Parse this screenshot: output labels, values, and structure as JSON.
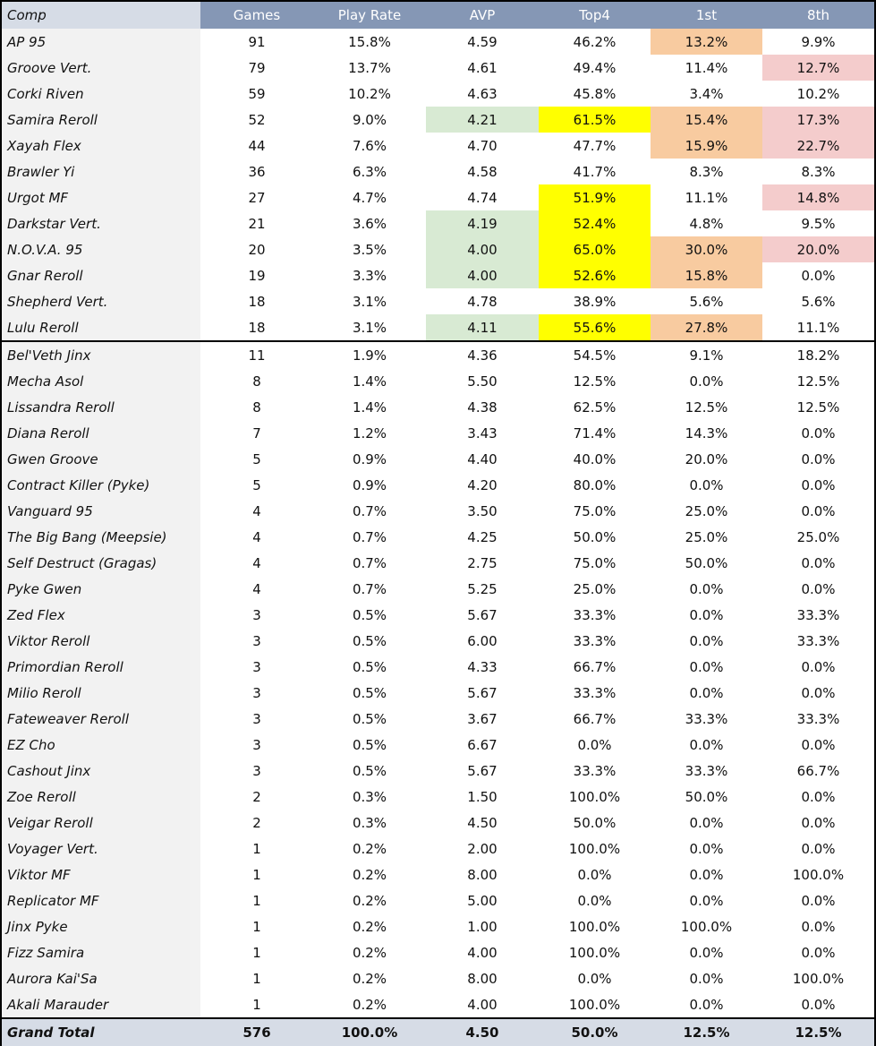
{
  "columns": [
    "Comp",
    "Games",
    "Play Rate",
    "AVP",
    "Top4",
    "1st",
    "8th"
  ],
  "colors": {
    "header": "#8597b5",
    "name_header": "#d6dce6",
    "green": "#d8ead3",
    "yellow": "#ffff00",
    "orange": "#f8cba0",
    "pink": "#f4cccc"
  },
  "rows": [
    {
      "comp": "AP 95",
      "games": "91",
      "play_rate": "15.8%",
      "avp": "4.59",
      "top4": "46.2%",
      "first": "13.2%",
      "eighth": "9.9%",
      "hl": {
        "first": "orange"
      }
    },
    {
      "comp": "Groove Vert.",
      "games": "79",
      "play_rate": "13.7%",
      "avp": "4.61",
      "top4": "49.4%",
      "first": "11.4%",
      "eighth": "12.7%",
      "hl": {
        "eighth": "pink"
      }
    },
    {
      "comp": "Corki Riven",
      "games": "59",
      "play_rate": "10.2%",
      "avp": "4.63",
      "top4": "45.8%",
      "first": "3.4%",
      "eighth": "10.2%",
      "hl": {}
    },
    {
      "comp": "Samira Reroll",
      "games": "52",
      "play_rate": "9.0%",
      "avp": "4.21",
      "top4": "61.5%",
      "first": "15.4%",
      "eighth": "17.3%",
      "hl": {
        "avp": "green",
        "top4": "yellow",
        "first": "orange",
        "eighth": "pink"
      }
    },
    {
      "comp": "Xayah Flex",
      "games": "44",
      "play_rate": "7.6%",
      "avp": "4.70",
      "top4": "47.7%",
      "first": "15.9%",
      "eighth": "22.7%",
      "hl": {
        "first": "orange",
        "eighth": "pink"
      }
    },
    {
      "comp": "Brawler Yi",
      "games": "36",
      "play_rate": "6.3%",
      "avp": "4.58",
      "top4": "41.7%",
      "first": "8.3%",
      "eighth": "8.3%",
      "hl": {}
    },
    {
      "comp": "Urgot MF",
      "games": "27",
      "play_rate": "4.7%",
      "avp": "4.74",
      "top4": "51.9%",
      "first": "11.1%",
      "eighth": "14.8%",
      "hl": {
        "top4": "yellow",
        "eighth": "pink"
      }
    },
    {
      "comp": "Darkstar Vert.",
      "games": "21",
      "play_rate": "3.6%",
      "avp": "4.19",
      "top4": "52.4%",
      "first": "4.8%",
      "eighth": "9.5%",
      "hl": {
        "avp": "green",
        "top4": "yellow"
      }
    },
    {
      "comp": "N.O.V.A. 95",
      "games": "20",
      "play_rate": "3.5%",
      "avp": "4.00",
      "top4": "65.0%",
      "first": "30.0%",
      "eighth": "20.0%",
      "hl": {
        "avp": "green",
        "top4": "yellow",
        "first": "orange",
        "eighth": "pink"
      }
    },
    {
      "comp": "Gnar Reroll",
      "games": "19",
      "play_rate": "3.3%",
      "avp": "4.00",
      "top4": "52.6%",
      "first": "15.8%",
      "eighth": "0.0%",
      "hl": {
        "avp": "green",
        "top4": "yellow",
        "first": "orange"
      }
    },
    {
      "comp": "Shepherd Vert.",
      "games": "18",
      "play_rate": "3.1%",
      "avp": "4.78",
      "top4": "38.9%",
      "first": "5.6%",
      "eighth": "5.6%",
      "hl": {}
    },
    {
      "comp": "Lulu Reroll",
      "games": "18",
      "play_rate": "3.1%",
      "avp": "4.11",
      "top4": "55.6%",
      "first": "27.8%",
      "eighth": "11.1%",
      "hl": {
        "avp": "green",
        "top4": "yellow",
        "first": "orange"
      }
    },
    {
      "comp": "Bel'Veth Jinx",
      "games": "11",
      "play_rate": "1.9%",
      "avp": "4.36",
      "top4": "54.5%",
      "first": "9.1%",
      "eighth": "18.2%",
      "hl": {}
    },
    {
      "comp": "Mecha Asol",
      "games": "8",
      "play_rate": "1.4%",
      "avp": "5.50",
      "top4": "12.5%",
      "first": "0.0%",
      "eighth": "12.5%",
      "hl": {}
    },
    {
      "comp": "Lissandra Reroll",
      "games": "8",
      "play_rate": "1.4%",
      "avp": "4.38",
      "top4": "62.5%",
      "first": "12.5%",
      "eighth": "12.5%",
      "hl": {}
    },
    {
      "comp": "Diana Reroll",
      "games": "7",
      "play_rate": "1.2%",
      "avp": "3.43",
      "top4": "71.4%",
      "first": "14.3%",
      "eighth": "0.0%",
      "hl": {}
    },
    {
      "comp": "Gwen Groove",
      "games": "5",
      "play_rate": "0.9%",
      "avp": "4.40",
      "top4": "40.0%",
      "first": "20.0%",
      "eighth": "0.0%",
      "hl": {}
    },
    {
      "comp": "Contract Killer (Pyke)",
      "games": "5",
      "play_rate": "0.9%",
      "avp": "4.20",
      "top4": "80.0%",
      "first": "0.0%",
      "eighth": "0.0%",
      "hl": {}
    },
    {
      "comp": "Vanguard 95",
      "games": "4",
      "play_rate": "0.7%",
      "avp": "3.50",
      "top4": "75.0%",
      "first": "25.0%",
      "eighth": "0.0%",
      "hl": {}
    },
    {
      "comp": "The Big Bang (Meepsie)",
      "games": "4",
      "play_rate": "0.7%",
      "avp": "4.25",
      "top4": "50.0%",
      "first": "25.0%",
      "eighth": "25.0%",
      "hl": {}
    },
    {
      "comp": "Self Destruct (Gragas)",
      "games": "4",
      "play_rate": "0.7%",
      "avp": "2.75",
      "top4": "75.0%",
      "first": "50.0%",
      "eighth": "0.0%",
      "hl": {}
    },
    {
      "comp": "Pyke Gwen",
      "games": "4",
      "play_rate": "0.7%",
      "avp": "5.25",
      "top4": "25.0%",
      "first": "0.0%",
      "eighth": "0.0%",
      "hl": {}
    },
    {
      "comp": "Zed Flex",
      "games": "3",
      "play_rate": "0.5%",
      "avp": "5.67",
      "top4": "33.3%",
      "first": "0.0%",
      "eighth": "33.3%",
      "hl": {}
    },
    {
      "comp": "Viktor Reroll",
      "games": "3",
      "play_rate": "0.5%",
      "avp": "6.00",
      "top4": "33.3%",
      "first": "0.0%",
      "eighth": "33.3%",
      "hl": {}
    },
    {
      "comp": "Primordian Reroll",
      "games": "3",
      "play_rate": "0.5%",
      "avp": "4.33",
      "top4": "66.7%",
      "first": "0.0%",
      "eighth": "0.0%",
      "hl": {}
    },
    {
      "comp": "Milio Reroll",
      "games": "3",
      "play_rate": "0.5%",
      "avp": "5.67",
      "top4": "33.3%",
      "first": "0.0%",
      "eighth": "0.0%",
      "hl": {}
    },
    {
      "comp": "Fateweaver Reroll",
      "games": "3",
      "play_rate": "0.5%",
      "avp": "3.67",
      "top4": "66.7%",
      "first": "33.3%",
      "eighth": "33.3%",
      "hl": {}
    },
    {
      "comp": "EZ Cho",
      "games": "3",
      "play_rate": "0.5%",
      "avp": "6.67",
      "top4": "0.0%",
      "first": "0.0%",
      "eighth": "0.0%",
      "hl": {}
    },
    {
      "comp": "Cashout Jinx",
      "games": "3",
      "play_rate": "0.5%",
      "avp": "5.67",
      "top4": "33.3%",
      "first": "33.3%",
      "eighth": "66.7%",
      "hl": {}
    },
    {
      "comp": "Zoe Reroll",
      "games": "2",
      "play_rate": "0.3%",
      "avp": "1.50",
      "top4": "100.0%",
      "first": "50.0%",
      "eighth": "0.0%",
      "hl": {}
    },
    {
      "comp": "Veigar Reroll",
      "games": "2",
      "play_rate": "0.3%",
      "avp": "4.50",
      "top4": "50.0%",
      "first": "0.0%",
      "eighth": "0.0%",
      "hl": {}
    },
    {
      "comp": "Voyager Vert.",
      "games": "1",
      "play_rate": "0.2%",
      "avp": "2.00",
      "top4": "100.0%",
      "first": "0.0%",
      "eighth": "0.0%",
      "hl": {}
    },
    {
      "comp": "Viktor MF",
      "games": "1",
      "play_rate": "0.2%",
      "avp": "8.00",
      "top4": "0.0%",
      "first": "0.0%",
      "eighth": "100.0%",
      "hl": {}
    },
    {
      "comp": "Replicator MF",
      "games": "1",
      "play_rate": "0.2%",
      "avp": "5.00",
      "top4": "0.0%",
      "first": "0.0%",
      "eighth": "0.0%",
      "hl": {}
    },
    {
      "comp": "Jinx Pyke",
      "games": "1",
      "play_rate": "0.2%",
      "avp": "1.00",
      "top4": "100.0%",
      "first": "100.0%",
      "eighth": "0.0%",
      "hl": {}
    },
    {
      "comp": "Fizz Samira",
      "games": "1",
      "play_rate": "0.2%",
      "avp": "4.00",
      "top4": "100.0%",
      "first": "0.0%",
      "eighth": "0.0%",
      "hl": {}
    },
    {
      "comp": "Aurora Kai'Sa",
      "games": "1",
      "play_rate": "0.2%",
      "avp": "8.00",
      "top4": "0.0%",
      "first": "0.0%",
      "eighth": "100.0%",
      "hl": {}
    },
    {
      "comp": "Akali Marauder",
      "games": "1",
      "play_rate": "0.2%",
      "avp": "4.00",
      "top4": "100.0%",
      "first": "0.0%",
      "eighth": "0.0%",
      "hl": {}
    }
  ],
  "total": {
    "comp": "Grand Total",
    "games": "576",
    "play_rate": "100.0%",
    "avp": "4.50",
    "top4": "50.0%",
    "first": "12.5%",
    "eighth": "12.5%"
  }
}
